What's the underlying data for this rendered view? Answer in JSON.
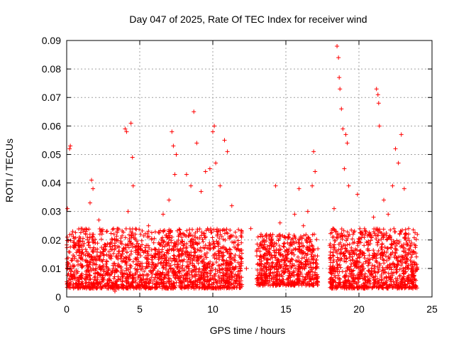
{
  "chart_data": {
    "type": "scatter",
    "title": "Day 047 of 2025, Rate Of TEC Index for receiver wind",
    "xlabel": "GPS time / hours",
    "ylabel": "ROTI / TECUs",
    "xlim": [
      0,
      25
    ],
    "ylim": [
      0,
      0.09
    ],
    "x_ticks": [
      "0",
      "5",
      "10",
      "15",
      "20",
      "25"
    ],
    "x_tick_values": [
      0,
      5,
      10,
      15,
      20,
      25
    ],
    "y_ticks": [
      "0",
      "0.01",
      "0.02",
      "0.03",
      "0.04",
      "0.05",
      "0.06",
      "0.07",
      "0.08",
      "0.09"
    ],
    "y_tick_values": [
      0,
      0.01,
      0.02,
      0.03,
      0.04,
      0.05,
      0.06,
      0.07,
      0.08,
      0.09
    ],
    "grid": true,
    "marker": "plus",
    "color": "#ff0000",
    "series": [
      {
        "name": "",
        "points": [
          [
            0.05,
            0.031
          ],
          [
            0.1,
            0.012
          ],
          [
            0.2,
            0.052
          ],
          [
            0.25,
            0.053
          ],
          [
            0.3,
            0.009
          ],
          [
            0.5,
            0.018
          ],
          [
            0.8,
            0.006
          ],
          [
            1.0,
            0.014
          ],
          [
            1.3,
            0.022
          ],
          [
            1.6,
            0.033
          ],
          [
            1.7,
            0.041
          ],
          [
            1.8,
            0.038
          ],
          [
            2.0,
            0.01
          ],
          [
            2.2,
            0.027
          ],
          [
            2.5,
            0.015
          ],
          [
            2.8,
            0.008
          ],
          [
            3.0,
            0.019
          ],
          [
            3.2,
            0.024
          ],
          [
            3.3,
            0.002
          ],
          [
            3.5,
            0.011
          ],
          [
            3.8,
            0.016
          ],
          [
            4.0,
            0.059
          ],
          [
            4.1,
            0.058
          ],
          [
            4.2,
            0.03
          ],
          [
            4.4,
            0.061
          ],
          [
            4.5,
            0.049
          ],
          [
            4.55,
            0.039
          ],
          [
            4.7,
            0.022
          ],
          [
            5.0,
            0.017
          ],
          [
            5.3,
            0.009
          ],
          [
            5.6,
            0.025
          ],
          [
            6.0,
            0.014
          ],
          [
            6.3,
            0.019
          ],
          [
            6.6,
            0.029
          ],
          [
            7.0,
            0.034
          ],
          [
            7.2,
            0.058
          ],
          [
            7.3,
            0.053
          ],
          [
            7.4,
            0.043
          ],
          [
            7.5,
            0.05
          ],
          [
            7.8,
            0.022
          ],
          [
            8.0,
            0.018
          ],
          [
            8.2,
            0.043
          ],
          [
            8.5,
            0.039
          ],
          [
            8.7,
            0.065
          ],
          [
            8.9,
            0.054
          ],
          [
            9.2,
            0.037
          ],
          [
            9.5,
            0.044
          ],
          [
            9.8,
            0.045
          ],
          [
            10.0,
            0.058
          ],
          [
            10.1,
            0.06
          ],
          [
            10.2,
            0.047
          ],
          [
            10.5,
            0.039
          ],
          [
            10.8,
            0.055
          ],
          [
            11.0,
            0.051
          ],
          [
            11.3,
            0.032
          ],
          [
            11.6,
            0.021
          ],
          [
            11.9,
            0.014
          ],
          [
            12.3,
            0.01
          ],
          [
            12.6,
            0.024
          ],
          [
            13.0,
            0.016
          ],
          [
            13.3,
            0.022
          ],
          [
            13.6,
            0.008
          ],
          [
            14.0,
            0.021
          ],
          [
            14.3,
            0.039
          ],
          [
            14.6,
            0.026
          ],
          [
            15.0,
            0.011
          ],
          [
            15.3,
            0.018
          ],
          [
            15.6,
            0.029
          ],
          [
            15.9,
            0.038
          ],
          [
            16.2,
            0.025
          ],
          [
            16.5,
            0.03
          ],
          [
            16.8,
            0.039
          ],
          [
            16.9,
            0.051
          ],
          [
            17.0,
            0.044
          ],
          [
            17.1,
            0.013
          ],
          [
            18.0,
            0.018
          ],
          [
            18.3,
            0.031
          ],
          [
            18.5,
            0.088
          ],
          [
            18.6,
            0.084
          ],
          [
            18.65,
            0.077
          ],
          [
            18.7,
            0.073
          ],
          [
            18.8,
            0.066
          ],
          [
            18.9,
            0.059
          ],
          [
            19.0,
            0.045
          ],
          [
            19.1,
            0.057
          ],
          [
            19.2,
            0.054
          ],
          [
            19.3,
            0.039
          ],
          [
            19.6,
            0.022
          ],
          [
            19.9,
            0.036
          ],
          [
            20.2,
            0.011
          ],
          [
            20.6,
            0.019
          ],
          [
            21.0,
            0.028
          ],
          [
            21.2,
            0.073
          ],
          [
            21.3,
            0.071
          ],
          [
            21.35,
            0.068
          ],
          [
            21.4,
            0.06
          ],
          [
            21.7,
            0.034
          ],
          [
            22.0,
            0.029
          ],
          [
            22.3,
            0.039
          ],
          [
            22.5,
            0.052
          ],
          [
            22.7,
            0.047
          ],
          [
            22.9,
            0.057
          ],
          [
            23.1,
            0.038
          ],
          [
            23.4,
            0.024
          ],
          [
            23.7,
            0.016
          ],
          [
            23.95,
            0.01
          ]
        ]
      }
    ],
    "dense_bands": [
      {
        "x_start": 0.0,
        "x_end": 12.0,
        "y_min": 0.003,
        "y_max": 0.024
      },
      {
        "x_start": 13.0,
        "x_end": 17.2,
        "y_min": 0.004,
        "y_max": 0.022
      },
      {
        "x_start": 18.0,
        "x_end": 24.0,
        "y_min": 0.003,
        "y_max": 0.024
      }
    ]
  }
}
